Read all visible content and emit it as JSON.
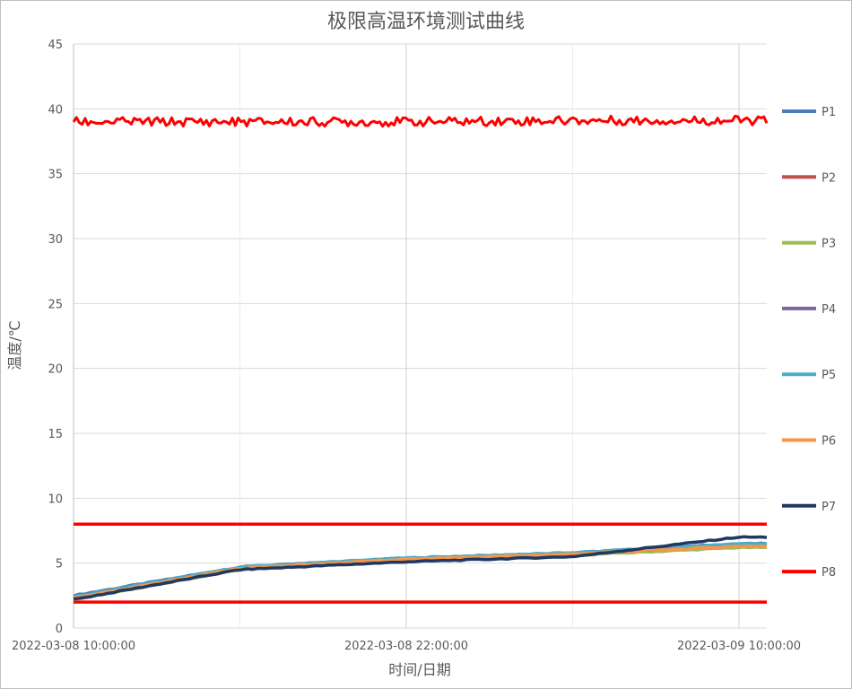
{
  "chart_data": {
    "type": "line",
    "title": "极限高温环境测试曲线",
    "xlabel": "时间/日期",
    "ylabel": "温度/℃",
    "x": [
      "2022-03-08 10:00:00",
      "2022-03-08 16:00:00",
      "2022-03-08 22:00:00",
      "2022-03-09 04:00:00",
      "2022-03-09 10:00:00"
    ],
    "x_tick_labels": [
      "2022-03-08 10:00:00",
      "2022-03-08 22:00:00",
      "2022-03-09 10:00:00"
    ],
    "ylim": [
      0,
      45
    ],
    "yticks": [
      0,
      5,
      10,
      15,
      20,
      25,
      30,
      35,
      40,
      45
    ],
    "grid": true,
    "legend_position": "right",
    "series": [
      {
        "name": "P1",
        "color": "#4a7ebb",
        "values": [
          2.5,
          4.7,
          5.4,
          5.8,
          6.5
        ]
      },
      {
        "name": "P2",
        "color": "#c0504d",
        "values": [
          2.3,
          4.6,
          5.3,
          5.7,
          6.4
        ]
      },
      {
        "name": "P3",
        "color": "#9bbb59",
        "values": [
          2.2,
          4.5,
          5.2,
          5.6,
          6.2
        ]
      },
      {
        "name": "P4",
        "color": "#8064a2",
        "values": [
          2.3,
          4.6,
          5.3,
          5.7,
          6.4
        ]
      },
      {
        "name": "P5",
        "color": "#4bacc6",
        "values": [
          2.4,
          4.7,
          5.4,
          5.8,
          6.5
        ]
      },
      {
        "name": "P6",
        "color": "#f79646",
        "values": [
          2.3,
          4.6,
          5.3,
          5.7,
          6.3
        ]
      },
      {
        "name": "P7",
        "color": "#1f3864",
        "values": [
          2.2,
          4.5,
          5.1,
          5.5,
          7.0
        ]
      },
      {
        "name": "P8",
        "color": "#ff0000",
        "values": [
          39.0,
          39.0,
          39.0,
          39.1,
          39.1
        ]
      }
    ],
    "reference_lines": [
      {
        "value": 8,
        "color": "#ff0000"
      },
      {
        "value": 2,
        "color": "#ff0000"
      }
    ]
  }
}
